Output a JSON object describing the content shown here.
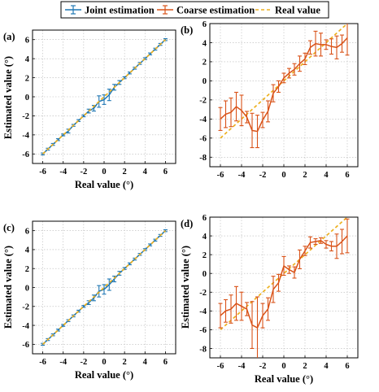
{
  "legend": {
    "items": [
      {
        "label": "Joint estimation",
        "color": "#1f77b4",
        "style": "line-errorbar"
      },
      {
        "label": "Coarse estimation",
        "color": "#d95319",
        "style": "line-errorbar"
      },
      {
        "label": "Real value",
        "color": "#edb120",
        "style": "dashed"
      }
    ]
  },
  "colors": {
    "joint": "#1f77b4",
    "coarse": "#d95319",
    "real": "#edb120"
  },
  "chart_data": [
    {
      "panel": "(a)",
      "type": "line",
      "xlabel": "Real value (°)",
      "ylabel": "Estimated value (°)",
      "xlim": [
        -7,
        7
      ],
      "ylim": [
        -7,
        7
      ],
      "xticks": [
        -6,
        -4,
        -2,
        0,
        2,
        4,
        6
      ],
      "yticks": [
        -6,
        -4,
        -2,
        0,
        2,
        4,
        6
      ],
      "grid": true,
      "series": [
        {
          "name": "Joint estimation",
          "x": [
            -6,
            -5.5,
            -5,
            -4.5,
            -4,
            -3.5,
            -3,
            -2.5,
            -2,
            -1.5,
            -1,
            -0.5,
            0,
            0.5,
            1,
            1.5,
            2,
            2.5,
            3,
            3.5,
            4,
            4.5,
            5,
            5.5,
            6
          ],
          "y": [
            -6,
            -5.5,
            -5,
            -4.5,
            -4,
            -3.6,
            -3,
            -2.5,
            -2,
            -1.5,
            -1.2,
            -0.5,
            -0.3,
            0.2,
            1,
            1.5,
            2,
            2.5,
            3,
            3.5,
            4,
            4.5,
            5,
            5.5,
            6
          ],
          "err": [
            0.1,
            0.1,
            0.1,
            0.1,
            0.1,
            0.2,
            0.1,
            0.1,
            0.1,
            0.2,
            0.3,
            0.6,
            0.5,
            0.6,
            0.3,
            0.2,
            0.1,
            0.1,
            0.1,
            0.1,
            0.1,
            0.1,
            0.1,
            0.1,
            0.1
          ]
        },
        {
          "name": "Real value",
          "x": [
            -6,
            6
          ],
          "y": [
            -6,
            6
          ]
        }
      ]
    },
    {
      "panel": "(b)",
      "type": "line",
      "xlabel": "",
      "ylabel": "",
      "xlim": [
        -7,
        7
      ],
      "ylim": [
        -9,
        6
      ],
      "xticks": [
        -6,
        -4,
        -2,
        0,
        2,
        4,
        6
      ],
      "yticks": [
        -8,
        -6,
        -4,
        -2,
        0,
        2,
        4,
        6
      ],
      "grid": true,
      "series": [
        {
          "name": "Coarse estimation",
          "x": [
            -6,
            -5.5,
            -5,
            -4.5,
            -4,
            -3.5,
            -3,
            -2.5,
            -2,
            -1.5,
            -1,
            -0.5,
            0,
            0.5,
            1,
            1.5,
            2,
            2.5,
            3,
            3.5,
            4,
            4.5,
            5,
            5.5,
            6
          ],
          "y": [
            -4,
            -3.5,
            -3.3,
            -2.7,
            -3.1,
            -3.8,
            -5.2,
            -5.3,
            -4.1,
            -3.2,
            -1.3,
            -0.6,
            0.3,
            0.8,
            1.2,
            1.8,
            2.3,
            3.5,
            3.9,
            3.8,
            3.8,
            3.6,
            3.5,
            3.9,
            4.5
          ],
          "err": [
            1.2,
            1.4,
            1.5,
            1.5,
            1.6,
            0.6,
            1.8,
            1.7,
            0.8,
            1.1,
            0.9,
            0.6,
            0.5,
            0.5,
            0.6,
            0.8,
            0.6,
            0.7,
            1.3,
            1.2,
            0.5,
            0.8,
            1.2,
            0.9,
            1.8
          ]
        },
        {
          "name": "Real value",
          "x": [
            -6,
            6
          ],
          "y": [
            -6,
            6
          ]
        }
      ]
    },
    {
      "panel": "(c)",
      "type": "line",
      "xlabel": "Real value (°)",
      "ylabel": "Estimated value (°)",
      "xlim": [
        -7,
        7
      ],
      "ylim": [
        -7,
        7
      ],
      "xticks": [
        -6,
        -4,
        -2,
        0,
        2,
        4,
        6
      ],
      "yticks": [
        -6,
        -4,
        -2,
        0,
        2,
        4,
        6
      ],
      "grid": true,
      "series": [
        {
          "name": "Joint estimation",
          "x": [
            -6,
            -5.5,
            -5,
            -4.5,
            -4,
            -3.5,
            -3,
            -2.5,
            -2,
            -1.5,
            -1,
            -0.5,
            0,
            0.5,
            1,
            1.5,
            2,
            2.5,
            3,
            3.5,
            4,
            4.5,
            5,
            5.5,
            6
          ],
          "y": [
            -6,
            -5.5,
            -5,
            -4.5,
            -4,
            -3.5,
            -3,
            -2.5,
            -2,
            -1.6,
            -1.1,
            -0.4,
            -0.2,
            0.3,
            0.9,
            1.5,
            2,
            2.5,
            3,
            3.5,
            4,
            4.5,
            5,
            5.5,
            6
          ],
          "err": [
            0.1,
            0.1,
            0.1,
            0.1,
            0.1,
            0.1,
            0.1,
            0.1,
            0.1,
            0.2,
            0.3,
            0.6,
            0.5,
            0.6,
            0.3,
            0.2,
            0.1,
            0.1,
            0.1,
            0.1,
            0.1,
            0.1,
            0.1,
            0.1,
            0.1
          ]
        },
        {
          "name": "Real value",
          "x": [
            -6,
            6
          ],
          "y": [
            -6,
            6
          ]
        }
      ]
    },
    {
      "panel": "(d)",
      "type": "line",
      "xlabel": "Real value (°)",
      "ylabel": "Estimated value (°)",
      "xlim": [
        -7,
        7
      ],
      "ylim": [
        -9,
        6
      ],
      "xticks": [
        -6,
        -4,
        -2,
        0,
        2,
        4,
        6
      ],
      "yticks": [
        -8,
        -6,
        -4,
        -2,
        0,
        2,
        4,
        6
      ],
      "grid": true,
      "series": [
        {
          "name": "Coarse estimation",
          "x": [
            -6,
            -5.5,
            -5,
            -4.5,
            -4,
            -3.5,
            -3,
            -2.5,
            -2,
            -1.5,
            -1,
            -0.5,
            0,
            0.5,
            1,
            1.5,
            2,
            2.5,
            3,
            3.5,
            4,
            4.5,
            5,
            5.5,
            6
          ],
          "y": [
            -4.5,
            -4,
            -3.8,
            -3.2,
            -3.5,
            -3.8,
            -5.5,
            -5.8,
            -4.5,
            -3.8,
            -1.7,
            -1,
            0.8,
            0.4,
            0.1,
            1.5,
            2.4,
            3.3,
            3.4,
            3.5,
            3.1,
            2.9,
            2.9,
            3.4,
            4
          ],
          "err": [
            1.3,
            1.2,
            1.5,
            1.8,
            1.5,
            0.7,
            2.5,
            3.3,
            1.3,
            1.2,
            1.4,
            0.9,
            1,
            0.4,
            0.6,
            1,
            0.5,
            0.6,
            0.3,
            0.3,
            0.4,
            0.5,
            1.3,
            1.3,
            1.8
          ]
        },
        {
          "name": "Real value",
          "x": [
            -6,
            6
          ],
          "y": [
            -6,
            6
          ]
        }
      ]
    }
  ]
}
